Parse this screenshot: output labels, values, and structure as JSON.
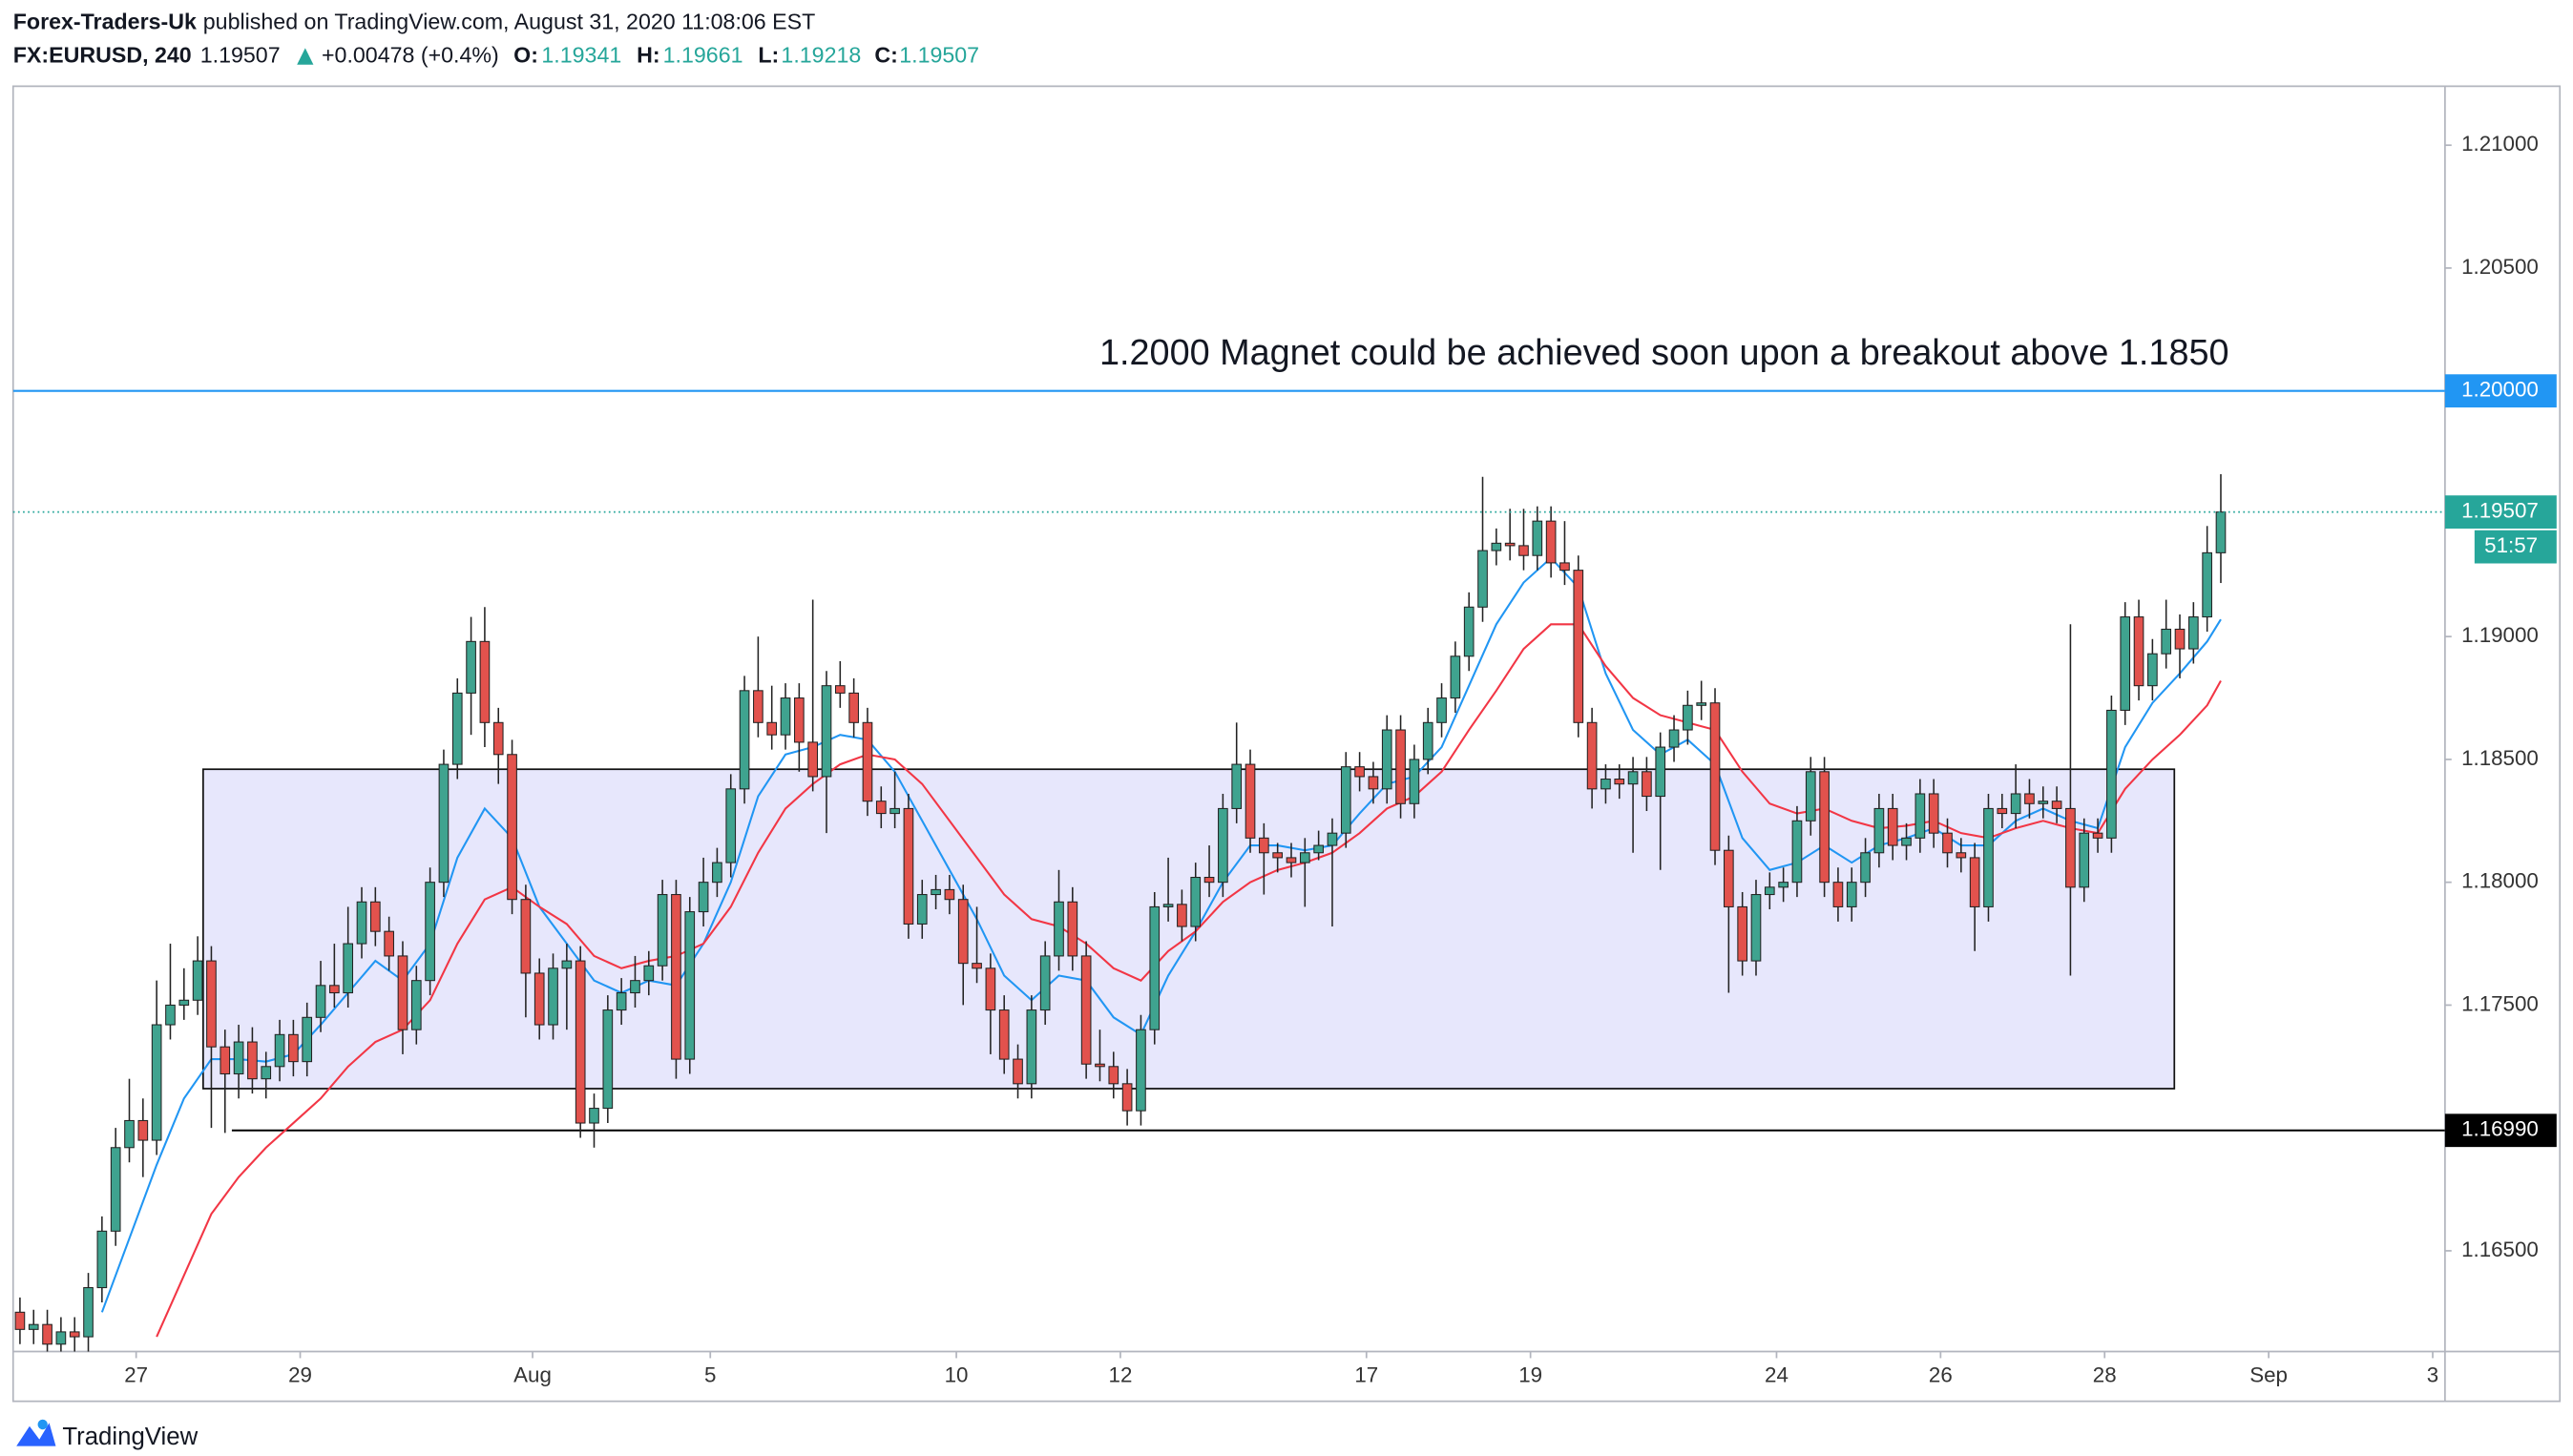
{
  "header": {
    "author": "Forex-Traders-Uk",
    "published": "published on TradingView.com, August 31, 2020 11:08:06 EST",
    "symbol": "FX:EURUSD, 240",
    "change": "+0.00478 (+0.4%)",
    "open_label": "O:",
    "high_label": "H:",
    "low_label": "L:",
    "close_label": "C:"
  },
  "logo": "TradingView",
  "chart_data": {
    "type": "candlestick",
    "annotation": "1.2000 Magnet could be achieved soon upon a breakout above 1.1850",
    "up_color": "#3fa38f",
    "down_color": "#e2524d",
    "xlim": [
      -0.5,
      177.4
    ],
    "ylim": [
      1.1609,
      1.2124
    ],
    "xticks": [
      {
        "value": 8.5,
        "label": "27"
      },
      {
        "value": 20.5,
        "label": "29"
      },
      {
        "value": 37.5,
        "label": "Aug"
      },
      {
        "value": 50.5,
        "label": "5"
      },
      {
        "value": 68.5,
        "label": "10"
      },
      {
        "value": 80.5,
        "label": "12"
      },
      {
        "value": 98.5,
        "label": "17"
      },
      {
        "value": 110.5,
        "label": "19"
      },
      {
        "value": 128.5,
        "label": "24"
      },
      {
        "value": 140.5,
        "label": "26"
      },
      {
        "value": 152.5,
        "label": "28"
      },
      {
        "value": 164.5,
        "label": "Sep"
      },
      {
        "value": 176.5,
        "label": "3"
      }
    ],
    "yticks": [
      {
        "value": 1.21,
        "label": "1.21000"
      },
      {
        "value": 1.205,
        "label": "1.20500"
      },
      {
        "value": 1.19,
        "label": "1.19000"
      },
      {
        "value": 1.185,
        "label": "1.18500"
      },
      {
        "value": 1.18,
        "label": "1.18000"
      },
      {
        "value": 1.175,
        "label": "1.17500"
      },
      {
        "value": 1.165,
        "label": "1.16500"
      }
    ],
    "open": [
      1.1625,
      1.1618,
      1.162,
      1.1612,
      1.1617,
      1.1615,
      1.1635,
      1.1658,
      1.1692,
      1.1703,
      1.1695,
      1.1742,
      1.175,
      1.1752,
      1.1768,
      1.1733,
      1.1722,
      1.1735,
      1.172,
      1.1725,
      1.1738,
      1.1727,
      1.1745,
      1.1758,
      1.1755,
      1.1775,
      1.1792,
      1.178,
      1.177,
      1.174,
      1.176,
      1.18,
      1.1848,
      1.1877,
      1.1898,
      1.1865,
      1.1852,
      1.1793,
      1.1763,
      1.1742,
      1.1765,
      1.1768,
      1.1702,
      1.1708,
      1.1748,
      1.1755,
      1.176,
      1.1766,
      1.1795,
      1.1728,
      1.1788,
      1.18,
      1.1808,
      1.1838,
      1.1878,
      1.1865,
      1.186,
      1.1875,
      1.1857,
      1.1843,
      1.188,
      1.1877,
      1.1865,
      1.1833,
      1.1828,
      1.183,
      1.1783,
      1.1795,
      1.1797,
      1.1793,
      1.1767,
      1.1765,
      1.1748,
      1.1728,
      1.1718,
      1.1748,
      1.177,
      1.1792,
      1.177,
      1.1726,
      1.1725,
      1.1718,
      1.1707,
      1.174,
      1.179,
      1.1791,
      1.1782,
      1.1802,
      1.18,
      1.183,
      1.1848,
      1.1818,
      1.1812,
      1.181,
      1.1808,
      1.1812,
      1.1815,
      1.182,
      1.1847,
      1.1843,
      1.1838,
      1.1862,
      1.1832,
      1.185,
      1.1865,
      1.1875,
      1.1892,
      1.1912,
      1.1935,
      1.1938,
      1.1937,
      1.1933,
      1.1947,
      1.193,
      1.1927,
      1.1865,
      1.1838,
      1.1842,
      1.184,
      1.1845,
      1.1835,
      1.1855,
      1.1862,
      1.1872,
      1.1873,
      1.1813,
      1.179,
      1.1768,
      1.1795,
      1.1798,
      1.18,
      1.1825,
      1.1845,
      1.18,
      1.179,
      1.18,
      1.1812,
      1.183,
      1.1815,
      1.1818,
      1.1836,
      1.182,
      1.1812,
      1.181,
      1.179,
      1.183,
      1.1828,
      1.1836,
      1.1832,
      1.1833,
      1.183,
      1.1798,
      1.182,
      1.1818,
      1.187,
      1.1908,
      1.188,
      1.1893,
      1.1903,
      1.1895,
      1.1908,
      1.19341
    ],
    "high": [
      1.1631,
      1.1626,
      1.1626,
      1.1623,
      1.1623,
      1.1641,
      1.1664,
      1.17,
      1.172,
      1.1712,
      1.176,
      1.1775,
      1.1765,
      1.1778,
      1.1774,
      1.174,
      1.1742,
      1.1741,
      1.1731,
      1.1744,
      1.1744,
      1.1751,
      1.1768,
      1.1775,
      1.179,
      1.1798,
      1.1798,
      1.1786,
      1.1776,
      1.1766,
      1.1806,
      1.1854,
      1.1883,
      1.1908,
      1.1912,
      1.1871,
      1.1858,
      1.1799,
      1.1769,
      1.1771,
      1.1775,
      1.1774,
      1.1714,
      1.1754,
      1.1761,
      1.177,
      1.1772,
      1.1801,
      1.1801,
      1.1794,
      1.181,
      1.1814,
      1.1844,
      1.1884,
      1.19,
      1.188,
      1.1881,
      1.1881,
      1.1915,
      1.1886,
      1.189,
      1.1883,
      1.1871,
      1.1839,
      1.1845,
      1.1836,
      1.1801,
      1.1803,
      1.1803,
      1.1799,
      1.179,
      1.1771,
      1.1754,
      1.1734,
      1.1754,
      1.1776,
      1.1805,
      1.1798,
      1.1776,
      1.174,
      1.1731,
      1.1724,
      1.1746,
      1.1796,
      1.181,
      1.1797,
      1.1808,
      1.1815,
      1.1836,
      1.1865,
      1.1854,
      1.1824,
      1.1816,
      1.1816,
      1.1818,
      1.1821,
      1.1826,
      1.1853,
      1.1853,
      1.1849,
      1.1868,
      1.1868,
      1.1856,
      1.1871,
      1.1881,
      1.1898,
      1.1918,
      1.1965,
      1.1944,
      1.1952,
      1.1952,
      1.1953,
      1.1953,
      1.1947,
      1.1933,
      1.1871,
      1.1848,
      1.1848,
      1.1851,
      1.1851,
      1.1861,
      1.1868,
      1.1878,
      1.1882,
      1.1879,
      1.1819,
      1.1796,
      1.1801,
      1.1804,
      1.1806,
      1.1831,
      1.1851,
      1.1851,
      1.1806,
      1.1806,
      1.1818,
      1.1836,
      1.1836,
      1.1824,
      1.1842,
      1.1842,
      1.1826,
      1.1818,
      1.1816,
      1.1836,
      1.1836,
      1.1848,
      1.1842,
      1.1839,
      1.1839,
      1.1905,
      1.1826,
      1.1826,
      1.1876,
      1.1914,
      1.1915,
      1.1899,
      1.1915,
      1.1909,
      1.1914,
      1.1945,
      1.19661
    ],
    "low": [
      1.1612,
      1.1612,
      1.1606,
      1.1606,
      1.1609,
      1.1609,
      1.1629,
      1.1652,
      1.1686,
      1.168,
      1.1689,
      1.1736,
      1.1744,
      1.1746,
      1.17,
      1.1698,
      1.1712,
      1.1714,
      1.1712,
      1.1719,
      1.1721,
      1.1721,
      1.1739,
      1.1749,
      1.1749,
      1.1769,
      1.1774,
      1.1764,
      1.173,
      1.1734,
      1.1754,
      1.1794,
      1.1842,
      1.186,
      1.1855,
      1.184,
      1.1787,
      1.1745,
      1.1736,
      1.1736,
      1.174,
      1.1696,
      1.1692,
      1.1702,
      1.1742,
      1.1749,
      1.1754,
      1.176,
      1.172,
      1.1722,
      1.1782,
      1.1794,
      1.1802,
      1.1832,
      1.1859,
      1.1854,
      1.1854,
      1.1845,
      1.1837,
      1.182,
      1.1871,
      1.1859,
      1.1827,
      1.1822,
      1.1822,
      1.1777,
      1.1777,
      1.1789,
      1.1787,
      1.175,
      1.1759,
      1.173,
      1.1722,
      1.1712,
      1.1712,
      1.1742,
      1.1764,
      1.1764,
      1.172,
      1.1719,
      1.1712,
      1.1701,
      1.1701,
      1.1734,
      1.1784,
      1.1776,
      1.1776,
      1.1794,
      1.1794,
      1.1824,
      1.1812,
      1.1795,
      1.1804,
      1.1802,
      1.179,
      1.1809,
      1.1782,
      1.1814,
      1.1837,
      1.1832,
      1.1832,
      1.1826,
      1.1826,
      1.1844,
      1.1859,
      1.1869,
      1.1886,
      1.1906,
      1.1929,
      1.1931,
      1.1927,
      1.1927,
      1.1924,
      1.1921,
      1.1859,
      1.183,
      1.1832,
      1.1834,
      1.1812,
      1.1829,
      1.1805,
      1.1849,
      1.1856,
      1.1866,
      1.1807,
      1.1755,
      1.1762,
      1.1762,
      1.1789,
      1.1792,
      1.1794,
      1.1819,
      1.1794,
      1.1784,
      1.1784,
      1.1794,
      1.1806,
      1.1809,
      1.1809,
      1.1812,
      1.1814,
      1.1806,
      1.1804,
      1.1772,
      1.1784,
      1.1822,
      1.1822,
      1.1826,
      1.1826,
      1.1824,
      1.1762,
      1.1792,
      1.1812,
      1.1812,
      1.1864,
      1.1874,
      1.1874,
      1.1887,
      1.1883,
      1.1889,
      1.1902,
      1.19218
    ],
    "close": [
      1.1618,
      1.162,
      1.1612,
      1.1617,
      1.1615,
      1.1635,
      1.1658,
      1.1692,
      1.1703,
      1.1695,
      1.1742,
      1.175,
      1.1752,
      1.1768,
      1.1733,
      1.1722,
      1.1735,
      1.172,
      1.1725,
      1.1738,
      1.1727,
      1.1745,
      1.1758,
      1.1755,
      1.1775,
      1.1792,
      1.178,
      1.177,
      1.174,
      1.176,
      1.18,
      1.1848,
      1.1877,
      1.1898,
      1.1865,
      1.1852,
      1.1793,
      1.1763,
      1.1742,
      1.1765,
      1.1768,
      1.1702,
      1.1708,
      1.1748,
      1.1755,
      1.176,
      1.1766,
      1.1795,
      1.1728,
      1.1788,
      1.18,
      1.1808,
      1.1838,
      1.1878,
      1.1865,
      1.186,
      1.1875,
      1.1857,
      1.1843,
      1.188,
      1.1877,
      1.1865,
      1.1833,
      1.1828,
      1.183,
      1.1783,
      1.1795,
      1.1797,
      1.1793,
      1.1767,
      1.1765,
      1.1748,
      1.1728,
      1.1718,
      1.1748,
      1.177,
      1.1792,
      1.177,
      1.1726,
      1.1725,
      1.1718,
      1.1707,
      1.174,
      1.179,
      1.1791,
      1.1782,
      1.1802,
      1.18,
      1.183,
      1.1848,
      1.1818,
      1.1812,
      1.181,
      1.1808,
      1.1812,
      1.1815,
      1.182,
      1.1847,
      1.1843,
      1.1838,
      1.1862,
      1.1832,
      1.185,
      1.1865,
      1.1875,
      1.1892,
      1.1912,
      1.1935,
      1.1938,
      1.1937,
      1.1933,
      1.1947,
      1.193,
      1.1927,
      1.1865,
      1.1838,
      1.1842,
      1.184,
      1.1845,
      1.1835,
      1.1855,
      1.1862,
      1.1872,
      1.1873,
      1.1813,
      1.179,
      1.1768,
      1.1795,
      1.1798,
      1.18,
      1.1825,
      1.1845,
      1.18,
      1.179,
      1.18,
      1.1812,
      1.183,
      1.1815,
      1.1818,
      1.1836,
      1.182,
      1.1812,
      1.181,
      1.179,
      1.183,
      1.1828,
      1.1836,
      1.1832,
      1.1833,
      1.183,
      1.1798,
      1.182,
      1.1818,
      1.187,
      1.1908,
      1.188,
      1.1893,
      1.1903,
      1.1895,
      1.1908,
      1.19341,
      1.19507
    ],
    "series": [
      {
        "color": "#2196f3",
        "x": [
          6,
          8,
          10,
          12,
          14,
          16,
          18,
          20,
          22,
          24,
          26,
          28,
          30,
          32,
          34,
          36,
          38,
          40,
          42,
          44,
          46,
          48,
          50,
          52,
          54,
          56,
          58,
          60,
          62,
          64,
          66,
          68,
          70,
          72,
          74,
          76,
          78,
          80,
          82,
          84,
          86,
          88,
          90,
          92,
          94,
          96,
          98,
          100,
          102,
          104,
          106,
          108,
          110,
          112,
          114,
          116,
          118,
          120,
          122,
          124,
          126,
          128,
          130,
          132,
          134,
          136,
          138,
          140,
          142,
          144,
          146,
          148,
          150,
          152,
          154,
          156,
          158,
          160,
          161
        ],
        "values": [
          1.1625,
          1.1655,
          1.1685,
          1.1712,
          1.1728,
          1.1728,
          1.1727,
          1.173,
          1.1742,
          1.1755,
          1.1768,
          1.176,
          1.1775,
          1.181,
          1.183,
          1.1818,
          1.179,
          1.1775,
          1.176,
          1.1755,
          1.176,
          1.1758,
          1.1775,
          1.18,
          1.1835,
          1.1852,
          1.1855,
          1.186,
          1.1858,
          1.1845,
          1.1825,
          1.1805,
          1.1785,
          1.1762,
          1.1752,
          1.1762,
          1.176,
          1.1745,
          1.1738,
          1.1762,
          1.178,
          1.18,
          1.1815,
          1.1815,
          1.1813,
          1.1815,
          1.1828,
          1.184,
          1.1843,
          1.1855,
          1.188,
          1.1905,
          1.1922,
          1.1932,
          1.192,
          1.1885,
          1.1862,
          1.1852,
          1.1858,
          1.1848,
          1.1818,
          1.1805,
          1.1808,
          1.1815,
          1.1808,
          1.1815,
          1.1818,
          1.1822,
          1.1815,
          1.1815,
          1.1825,
          1.183,
          1.1825,
          1.1822,
          1.1855,
          1.1873,
          1.1885,
          1.1898,
          1.1907
        ]
      },
      {
        "color": "#f23645",
        "x": [
          10,
          12,
          14,
          16,
          18,
          20,
          22,
          24,
          26,
          28,
          30,
          32,
          34,
          36,
          38,
          40,
          42,
          44,
          46,
          48,
          50,
          52,
          54,
          56,
          58,
          60,
          62,
          64,
          66,
          68,
          70,
          72,
          74,
          76,
          78,
          80,
          82,
          84,
          86,
          88,
          90,
          92,
          94,
          96,
          98,
          100,
          102,
          104,
          106,
          108,
          110,
          112,
          114,
          116,
          118,
          120,
          122,
          124,
          126,
          128,
          130,
          132,
          134,
          136,
          138,
          140,
          142,
          144,
          146,
          148,
          150,
          152,
          154,
          156,
          158,
          160,
          161
        ],
        "values": [
          1.1615,
          1.164,
          1.1665,
          1.168,
          1.1692,
          1.1702,
          1.1712,
          1.1725,
          1.1735,
          1.174,
          1.1752,
          1.1775,
          1.1793,
          1.1798,
          1.179,
          1.1783,
          1.177,
          1.1765,
          1.1768,
          1.177,
          1.1775,
          1.179,
          1.1812,
          1.183,
          1.184,
          1.1848,
          1.1852,
          1.185,
          1.184,
          1.1825,
          1.181,
          1.1795,
          1.1785,
          1.1782,
          1.1775,
          1.1765,
          1.176,
          1.1772,
          1.178,
          1.1792,
          1.18,
          1.1805,
          1.1808,
          1.1812,
          1.182,
          1.183,
          1.1835,
          1.1845,
          1.1862,
          1.1878,
          1.1895,
          1.1905,
          1.1905,
          1.1888,
          1.1875,
          1.1868,
          1.1865,
          1.1862,
          1.1845,
          1.1832,
          1.1828,
          1.183,
          1.1825,
          1.1822,
          1.1823,
          1.1825,
          1.182,
          1.1818,
          1.1822,
          1.1825,
          1.1822,
          1.182,
          1.1838,
          1.185,
          1.186,
          1.1872,
          1.1882
        ]
      }
    ],
    "range_box": {
      "start": 13.4,
      "end": 157.6,
      "top": 1.1846,
      "bottom": 1.1716,
      "color": "#7b7bf0"
    },
    "levels": [
      {
        "value": 1.2,
        "label": "1.20000",
        "color": "#2196f3",
        "start": -0.5
      },
      {
        "value": 1.1699,
        "label": "1.16990",
        "color": "#000000",
        "start": 15.5
      }
    ],
    "price_line_color": "#26a69a",
    "countdown": "51:57"
  }
}
